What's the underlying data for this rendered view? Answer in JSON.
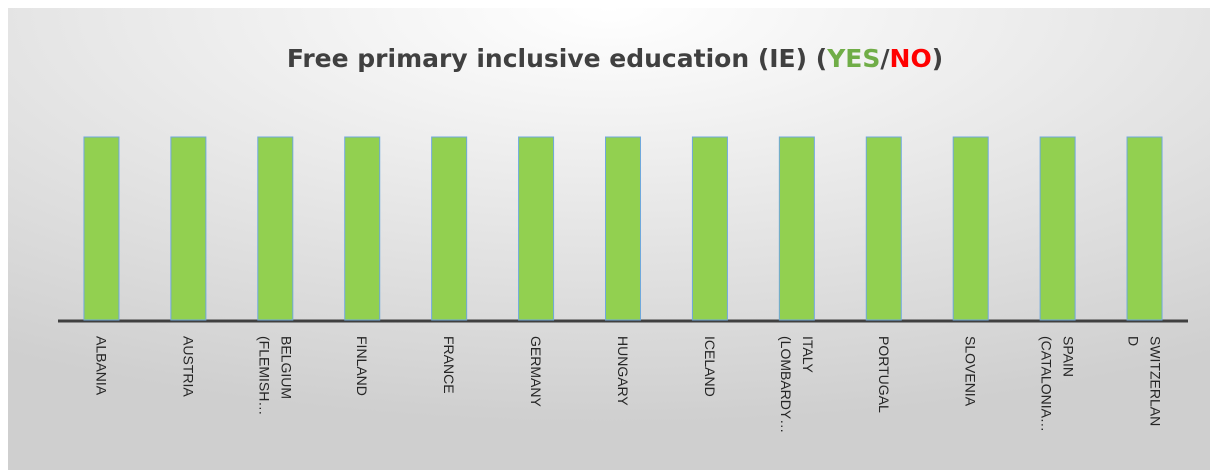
{
  "chart_data": {
    "type": "bar",
    "title": [
      {
        "text": "Free primary inclusive education (IE) (",
        "color": "#404040"
      },
      {
        "text": "YES",
        "color": "#70ad47"
      },
      {
        "text": "/",
        "color": "#404040"
      },
      {
        "text": "NO",
        "color": "#ff0000"
      },
      {
        "text": ")",
        "color": "#404040"
      }
    ],
    "categories": [
      "ALBANIA",
      "AUSTRIA",
      "BELGIUM (FLEMISH…",
      "FINLAND",
      "FRANCE",
      "GERMANY",
      "HUNGARY",
      "ICELAND",
      "ITALY (LOMBARDY…",
      "PORTUGAL",
      "SLOVENIA",
      "SPAIN (CATALONIA…",
      "SWITZERLAND"
    ],
    "values": [
      1,
      1,
      1,
      1,
      1,
      1,
      1,
      1,
      1,
      1,
      1,
      1,
      1
    ],
    "color": "#92d050"
  }
}
